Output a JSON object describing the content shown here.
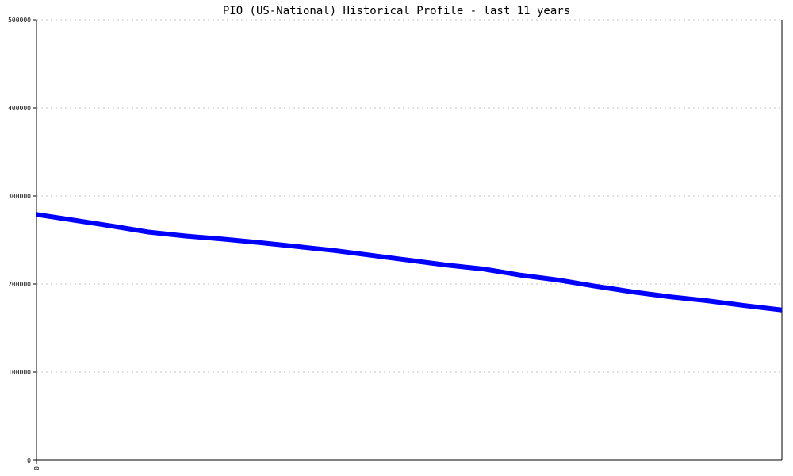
{
  "chart_data": {
    "type": "line",
    "title": "PIO (US-National) Historical Profile - last 11 years",
    "xlabel": "",
    "ylabel": "",
    "x_tick_labels": [
      "0"
    ],
    "y_ticks": [
      0,
      100000,
      200000,
      300000,
      400000,
      500000
    ],
    "y_tick_labels": [
      "0",
      "100000",
      "200000",
      "300000",
      "400000",
      "500000"
    ],
    "ylim": [
      0,
      500000
    ],
    "grid": true,
    "colors": {
      "line": "#0000ff",
      "grid": "#c0c0c0",
      "axis": "#000000"
    },
    "series": [
      {
        "values": [
          279000,
          272500,
          266000,
          259000,
          254500,
          251000,
          247000,
          242500,
          238000,
          232500,
          227000,
          221500,
          217000,
          210000,
          204500,
          197500,
          191000,
          185500,
          181000,
          175500,
          170500
        ]
      }
    ]
  }
}
